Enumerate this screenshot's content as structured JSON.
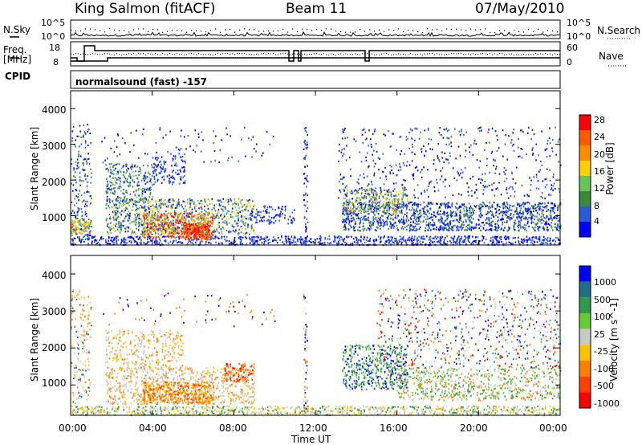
{
  "header": {
    "station": "King Salmon (fitACF)",
    "beam": "Beam 11",
    "date": "07/May/2010"
  },
  "left_labels": {
    "nsky": "N.Sky",
    "freq": "Freq.",
    "freq_unit": "[MHz]",
    "cpid": "CPID"
  },
  "right_labels": {
    "nsearch": "N.Search",
    "nave": "Nave"
  },
  "strip_ticks": {
    "noise_left": [
      "10^5",
      "10^0"
    ],
    "noise_right": [
      "10^5",
      "10^0"
    ],
    "freq_left": [
      "18",
      "8"
    ],
    "nave_right": [
      "60",
      "0"
    ]
  },
  "cpid_text": "normalsound (fast) -157",
  "colors": {
    "power": [
      "#0000ff",
      "#2a5bd8",
      "#3a8a3a",
      "#66c45a",
      "#ffd000",
      "#ff8c00",
      "#ff5a00",
      "#ff0000"
    ],
    "velocity": [
      "#0000ff",
      "#1f6f88",
      "#2f9a4a",
      "#66cc33",
      "#c8c8c8",
      "#ffc000",
      "#ff8000",
      "#ff4000",
      "#ff0000"
    ]
  },
  "chart_data": [
    {
      "type": "heatmap",
      "panel": "power",
      "ylabel": "Slant Range [km]",
      "yticks": [
        "1000",
        "2000",
        "3000",
        "4000"
      ],
      "colorbar_label": "Power [dB]",
      "colorbar_ticks": [
        "4",
        "8",
        "12",
        "16",
        "20",
        "24",
        "28"
      ],
      "ylim": [
        180,
        4500
      ],
      "crange": [
        0,
        30
      ]
    },
    {
      "type": "heatmap",
      "panel": "velocity",
      "ylabel": "Slant Range [km]",
      "yticks": [
        "1000",
        "2000",
        "3000",
        "4000"
      ],
      "colorbar_label": "Velocity [m s^-1]",
      "colorbar_ticks": [
        "1000",
        "500",
        "100",
        "25",
        "-25",
        "-100",
        "-500",
        "-1000"
      ],
      "ylim": [
        180,
        4500
      ]
    }
  ],
  "xaxis": {
    "label": "Time UT",
    "ticks": [
      "00:00",
      "04:00",
      "08:00",
      "12:00",
      "16:00",
      "20:00",
      "00:00"
    ],
    "xlim": [
      0,
      24
    ]
  }
}
